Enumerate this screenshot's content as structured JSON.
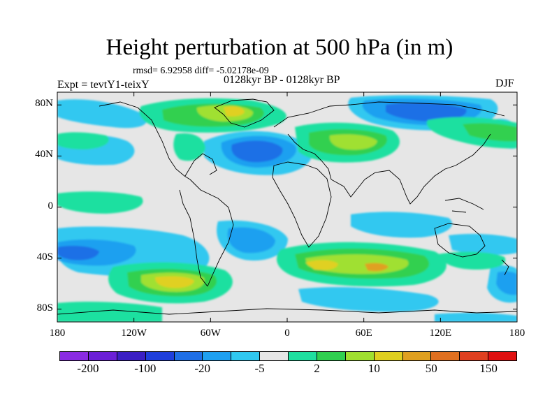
{
  "title": "Height perturbation at 500 hPa (in m)",
  "stats_line": "rmsd= 6.92958 diff= -5.02178e-09",
  "period_line": "0128kyr BP - 0128kyr BP",
  "expt_label": "Expt = tevtY1-teixY",
  "season_label": "DJF",
  "map": {
    "projection": "cylindrical-equidistant",
    "lon_range": [
      -180,
      180
    ],
    "lat_range": [
      -90,
      90
    ],
    "background_color": "#e6e6e6",
    "coastline_color": "#000000",
    "lat_ticks": [
      {
        "value": 80,
        "label": "80N"
      },
      {
        "value": 40,
        "label": "40N"
      },
      {
        "value": 0,
        "label": "0"
      },
      {
        "value": -40,
        "label": "40S"
      },
      {
        "value": -80,
        "label": "80S"
      }
    ],
    "lon_ticks": [
      {
        "value": -180,
        "label": "180"
      },
      {
        "value": -120,
        "label": "120W"
      },
      {
        "value": -60,
        "label": "60W"
      },
      {
        "value": 0,
        "label": "0"
      },
      {
        "value": 60,
        "label": "60E"
      },
      {
        "value": 120,
        "label": "120E"
      },
      {
        "value": 180,
        "label": "180"
      }
    ]
  },
  "colorbar": {
    "colors": [
      "#8a2be2",
      "#6b1fd6",
      "#3b1fc4",
      "#1f3fdc",
      "#1f6fe6",
      "#1fa0f0",
      "#30c8f0",
      "#e6e6e6",
      "#1fe0a0",
      "#30d050",
      "#a0e030",
      "#e0d020",
      "#e0a020",
      "#e07020",
      "#e04020",
      "#e01010"
    ],
    "labels": [
      {
        "text": "-200",
        "boundary": 1
      },
      {
        "text": "-100",
        "boundary": 3
      },
      {
        "text": "-20",
        "boundary": 5
      },
      {
        "text": "-5",
        "boundary": 7
      },
      {
        "text": "2",
        "boundary": 9
      },
      {
        "text": "10",
        "boundary": 11
      },
      {
        "text": "50",
        "boundary": 13
      },
      {
        "text": "150",
        "boundary": 15
      }
    ]
  }
}
